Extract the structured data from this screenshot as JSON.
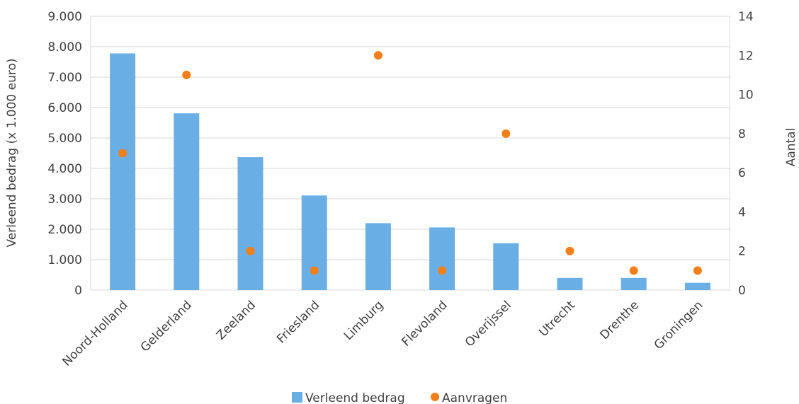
{
  "colors": {
    "bar": "#6aaee6",
    "dot": "#f57f17",
    "grid": "#d9d9d9"
  },
  "chart_data": {
    "type": "bar",
    "categories": [
      "Noord-Holland",
      "Gelderland",
      "Zeeland",
      "Friesland",
      "Limburg",
      "Flevoland",
      "Overijssel",
      "Utrecht",
      "Drenthe",
      "Groningen"
    ],
    "series": [
      {
        "name": "Verleend bedrag",
        "type": "bar",
        "axis": "left",
        "values": [
          7780,
          5810,
          4370,
          3110,
          2200,
          2060,
          1540,
          400,
          400,
          240
        ]
      },
      {
        "name": "Aanvragen",
        "type": "scatter",
        "axis": "right",
        "values": [
          7,
          11,
          2,
          1,
          12,
          1,
          8,
          2,
          1,
          1
        ]
      }
    ],
    "ylabel": "Verleend bedrag (x 1.000 euro)",
    "y2label": "Aantal",
    "ylim": [
      0,
      9000
    ],
    "y2lim": [
      0,
      14
    ],
    "yticks": [
      "0",
      "1.000",
      "2.000",
      "3.000",
      "4.000",
      "5.000",
      "6.000",
      "7.000",
      "8.000",
      "9.000"
    ],
    "y2ticks": [
      "0",
      "2",
      "4",
      "6",
      "8",
      "10",
      "12",
      "14"
    ],
    "grid": true,
    "legend_position": "bottom"
  }
}
